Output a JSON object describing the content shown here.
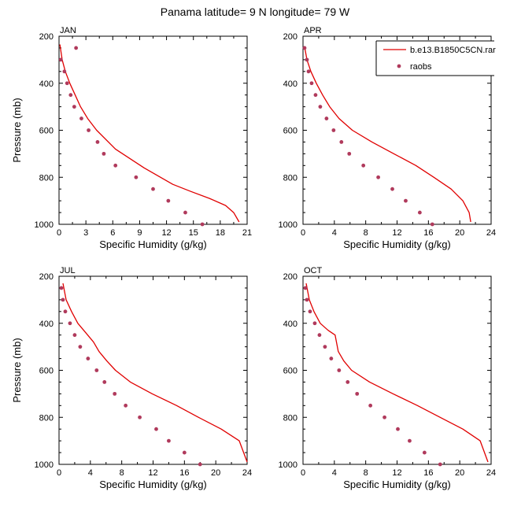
{
  "figure": {
    "title": "Panama  latitude= 9 N longitude= 79 W"
  },
  "legend": {
    "entries": [
      {
        "label": "b.e13.B1850C5CN.rar",
        "style": "line",
        "color": "#e00000"
      },
      {
        "label": "raobs",
        "style": "marker",
        "color": "#b03a5c"
      }
    ]
  },
  "chart_data": [
    {
      "type": "line",
      "panel": "JAN",
      "xlabel": "Specific Humidity (g/kg)",
      "ylabel": "Pressure (mb)",
      "xlim": [
        0,
        21
      ],
      "xticks": [
        0,
        3,
        6,
        9,
        12,
        15,
        18,
        21
      ],
      "ylim": [
        1000,
        200
      ],
      "yticks": [
        200,
        400,
        600,
        800,
        1000
      ],
      "series": [
        {
          "name": "b.e13.B1850C5CN.rar",
          "style": "line",
          "x": [
            0.1,
            0.35,
            0.7,
            1.2,
            1.8,
            2.4,
            3.2,
            4.2,
            6.3,
            9.5,
            12.7,
            14.7,
            16.8,
            18.6,
            19.5,
            20.1
          ],
          "y": [
            235,
            300,
            350,
            400,
            450,
            500,
            550,
            600,
            680,
            760,
            830,
            860,
            890,
            920,
            950,
            990
          ]
        },
        {
          "name": "raobs",
          "style": "marker",
          "x": [
            1.9,
            0.2,
            0.6,
            0.9,
            1.3,
            1.7,
            2.5,
            3.3,
            4.3,
            5.0,
            6.3,
            8.6,
            10.5,
            12.2,
            14.1,
            16.0
          ],
          "y": [
            250,
            300,
            350,
            400,
            450,
            500,
            550,
            600,
            650,
            700,
            750,
            800,
            850,
            900,
            950,
            1000
          ]
        }
      ]
    },
    {
      "type": "line",
      "panel": "APR",
      "xlabel": "Specific Humidity (g/kg)",
      "ylabel": "",
      "xlim": [
        0,
        24
      ],
      "xticks": [
        0,
        4,
        8,
        12,
        16,
        20,
        24
      ],
      "ylim": [
        1000,
        200
      ],
      "yticks": [
        200,
        400,
        600,
        800,
        1000
      ],
      "series": [
        {
          "name": "b.e13.B1850C5CN.rar",
          "style": "line",
          "x": [
            0.2,
            0.5,
            1.0,
            1.7,
            2.5,
            3.4,
            4.6,
            6.3,
            8.8,
            11.6,
            14.4,
            16.7,
            18.9,
            20.4,
            21.2,
            21.4
          ],
          "y": [
            245,
            300,
            350,
            400,
            450,
            500,
            550,
            600,
            650,
            700,
            750,
            800,
            850,
            900,
            950,
            990
          ]
        },
        {
          "name": "raobs",
          "style": "marker",
          "x": [
            0.2,
            0.5,
            0.7,
            1.1,
            1.6,
            2.2,
            3.0,
            3.9,
            4.9,
            5.9,
            7.7,
            9.6,
            11.4,
            13.1,
            14.9,
            16.5
          ],
          "y": [
            250,
            300,
            350,
            400,
            450,
            500,
            550,
            600,
            650,
            700,
            750,
            800,
            850,
            900,
            950,
            1000
          ]
        }
      ]
    },
    {
      "type": "line",
      "panel": "JUL",
      "xlabel": "Specific Humidity (g/kg)",
      "ylabel": "Pressure (mb)",
      "xlim": [
        0,
        24
      ],
      "xticks": [
        0,
        4,
        8,
        12,
        16,
        20,
        24
      ],
      "ylim": [
        1000,
        200
      ],
      "yticks": [
        200,
        400,
        600,
        800,
        1000
      ],
      "series": [
        {
          "name": "b.e13.B1850C5CN.rar",
          "style": "line",
          "x": [
            0.5,
            0.9,
            1.6,
            2.4,
            3.4,
            4.4,
            5.1,
            6.1,
            7.2,
            9.1,
            11.9,
            15.0,
            17.8,
            20.7,
            23.0,
            24.0
          ],
          "y": [
            230,
            300,
            350,
            400,
            440,
            480,
            520,
            560,
            600,
            650,
            700,
            750,
            800,
            850,
            900,
            990
          ]
        },
        {
          "name": "raobs",
          "style": "marker",
          "x": [
            0.3,
            0.5,
            0.8,
            1.4,
            2.0,
            2.7,
            3.7,
            4.8,
            5.8,
            7.1,
            8.5,
            10.3,
            12.4,
            14.0,
            16.0,
            18.0
          ],
          "y": [
            250,
            300,
            350,
            400,
            450,
            500,
            550,
            600,
            650,
            700,
            750,
            800,
            850,
            900,
            950,
            1000
          ]
        }
      ]
    },
    {
      "type": "line",
      "panel": "OCT",
      "xlabel": "Specific Humidity (g/kg)",
      "ylabel": "",
      "xlim": [
        0,
        24
      ],
      "xticks": [
        0,
        4,
        8,
        12,
        16,
        20,
        24
      ],
      "ylim": [
        1000,
        200
      ],
      "yticks": [
        200,
        400,
        600,
        800,
        1000
      ],
      "series": [
        {
          "name": "b.e13.B1850C5CN.rar",
          "style": "line",
          "x": [
            0.4,
            0.8,
            1.4,
            2.2,
            3.2,
            4.1,
            4.5,
            5.2,
            6.2,
            8.5,
            11.5,
            14.6,
            17.5,
            20.4,
            22.6,
            23.6
          ],
          "y": [
            230,
            300,
            350,
            400,
            430,
            450,
            520,
            560,
            600,
            650,
            700,
            750,
            800,
            850,
            900,
            990
          ]
        },
        {
          "name": "raobs",
          "style": "marker",
          "x": [
            0.3,
            0.5,
            0.9,
            1.5,
            2.1,
            2.8,
            3.6,
            4.6,
            5.7,
            6.9,
            8.6,
            10.4,
            12.1,
            13.6,
            15.5,
            17.5
          ],
          "y": [
            250,
            300,
            350,
            400,
            450,
            500,
            550,
            600,
            650,
            700,
            750,
            800,
            850,
            900,
            950,
            1000
          ]
        }
      ]
    }
  ]
}
